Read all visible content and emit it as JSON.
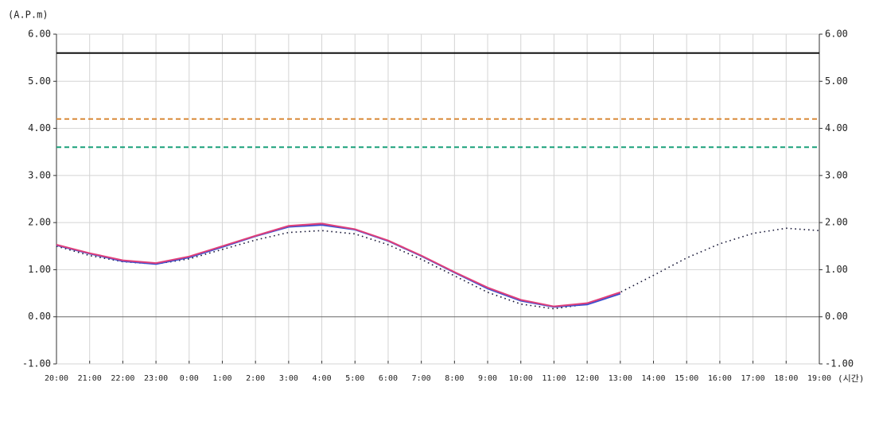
{
  "chart_data": {
    "type": "line",
    "y_label": "(A.P.m)",
    "x_label": "(시간)",
    "categories": [
      "20:00",
      "21:00",
      "22:00",
      "23:00",
      "0:00",
      "1:00",
      "2:00",
      "3:00",
      "4:00",
      "5:00",
      "6:00",
      "7:00",
      "8:00",
      "9:00",
      "10:00",
      "11:00",
      "12:00",
      "13:00",
      "14:00",
      "15:00",
      "16:00",
      "17:00",
      "18:00",
      "19:00"
    ],
    "ylim": [
      -1,
      6
    ],
    "yticks": [
      {
        "value": -1,
        "label": "-1.00"
      },
      {
        "value": 0,
        "label": "0.00"
      },
      {
        "value": 1,
        "label": "1.00"
      },
      {
        "value": 2,
        "label": "2.00"
      },
      {
        "value": 3,
        "label": "3.00"
      },
      {
        "value": 4,
        "label": "4.00"
      },
      {
        "value": 5,
        "label": "5.00"
      },
      {
        "value": 6,
        "label": "6.00"
      }
    ],
    "grid": true,
    "reference_lines": [
      {
        "value": 5.6,
        "color": "#111111",
        "style": "solid"
      },
      {
        "value": 4.2,
        "color": "#d98a3a",
        "style": "dashed"
      },
      {
        "value": 3.6,
        "color": "#1aa07a",
        "style": "dashed"
      }
    ],
    "series": [
      {
        "color": "#1a1a3a",
        "style": "dotted",
        "values": [
          1.5,
          1.3,
          1.17,
          1.12,
          1.23,
          1.43,
          1.63,
          1.79,
          1.83,
          1.76,
          1.53,
          1.22,
          0.87,
          0.52,
          0.27,
          0.17,
          0.27,
          0.52,
          0.88,
          1.25,
          1.55,
          1.77,
          1.88,
          1.83
        ]
      },
      {
        "color": "#3a4fd0",
        "style": "solid",
        "values": [
          1.52,
          1.34,
          1.18,
          1.12,
          1.26,
          1.48,
          1.71,
          1.91,
          1.95,
          1.85,
          1.61,
          1.29,
          0.94,
          0.6,
          0.34,
          0.21,
          0.26,
          0.49,
          null,
          null,
          null,
          null,
          null,
          null
        ]
      },
      {
        "color": "#e0407a",
        "style": "solid",
        "values": [
          1.53,
          1.35,
          1.2,
          1.14,
          1.28,
          1.5,
          1.72,
          1.93,
          1.98,
          1.86,
          1.62,
          1.3,
          0.95,
          0.62,
          0.36,
          0.22,
          0.29,
          0.52,
          null,
          null,
          null,
          null,
          null,
          null
        ]
      }
    ]
  }
}
